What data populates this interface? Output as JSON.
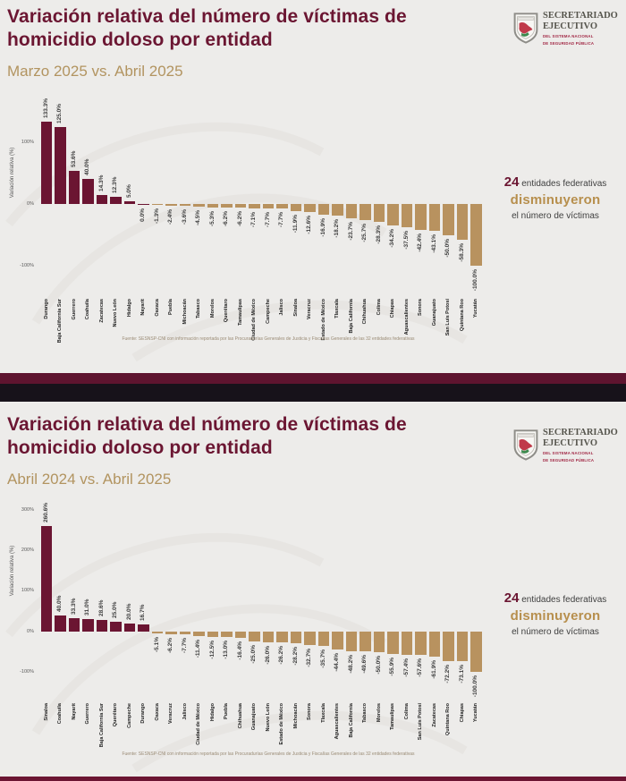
{
  "logo": {
    "org_line1": "SECRETARIADO",
    "org_line2": "EJECUTIVO",
    "sub_line1": "DEL SISTEMA NACIONAL",
    "sub_line2": "DE SEGURIDAD PÚBLICA"
  },
  "colors": {
    "background": "#edecea",
    "title_maroon": "#6b1632",
    "subtitle_tan": "#b29460",
    "bar_positive": "#6b1532",
    "bar_negative": "#b8925f",
    "highlight_gold": "#b78f4d",
    "divider_maroon": "#5e142f",
    "divider_black": "#17121a"
  },
  "chart_data": [
    {
      "type": "bar",
      "title": "Variación relativa del número de víctimas de homicidio doloso por entidad",
      "subtitle": "Marzo 2025 vs. Abril 2025",
      "ylabel": "Variación relativa (%)",
      "ylim": [
        -110,
        145
      ],
      "yticks": [
        100,
        0,
        -100
      ],
      "grid": false,
      "legend": "none",
      "categories": [
        "Durango",
        "Baja California Sur",
        "Guerrero",
        "Coahuila",
        "Zacatecas",
        "Nuevo León",
        "Hidalgo",
        "Nayarit",
        "Oaxaca",
        "Puebla",
        "Michoacán",
        "Tabasco",
        "Morelos",
        "Querétaro",
        "Tamaulipas",
        "Ciudad de México",
        "Campeche",
        "Jalisco",
        "Sinaloa",
        "Veracruz",
        "Estado de México",
        "Tlaxcala",
        "Baja California",
        "Chihuahua",
        "Colima",
        "Chiapas",
        "Aguascalientes",
        "Sonora",
        "Guanajuato",
        "San Luis Potosí",
        "Quintana Roo",
        "Yucatán"
      ],
      "values": [
        133.3,
        125.0,
        53.6,
        40.0,
        14.3,
        12.3,
        5.0,
        0.0,
        -1.3,
        -2.4,
        -3.6,
        -4.5,
        -5.3,
        -6.2,
        -6.2,
        -7.1,
        -7.7,
        -7.7,
        -11.9,
        -12.6,
        -16.9,
        -18.2,
        -23.7,
        -25.7,
        -28.3,
        -34.2,
        -37.5,
        -42.4,
        -43.1,
        -50.0,
        -58.3,
        -100.0
      ],
      "annotation": {
        "count": "24",
        "after_count": " entidades federativas",
        "highlight": "disminuyeron",
        "tail": "el número de víctimas"
      },
      "source": "Fuente: SESNSP-CNI con información reportada por las Procuradurías Generales de Justicia y Fiscalías Generales de las 32 entidades federativas"
    },
    {
      "type": "bar",
      "title": "Variación relativa del número de víctimas de homicidio doloso por entidad",
      "subtitle": "Abril 2024 vs. Abril 2025",
      "ylabel": "Variación relativa (%)",
      "ylim": [
        -110,
        300
      ],
      "yticks": [
        300,
        200,
        100,
        0,
        -100
      ],
      "grid": false,
      "legend": "none",
      "categories": [
        "Sinaloa",
        "Coahuila",
        "Nayarit",
        "Guerrero",
        "Baja California Sur",
        "Querétaro",
        "Campeche",
        "Durango",
        "Oaxaca",
        "Veracruz",
        "Jalisco",
        "Ciudad de México",
        "Hidalgo",
        "Puebla",
        "Chihuahua",
        "Guanajuato",
        "Nuevo León",
        "Estado de México",
        "Michoacán",
        "Sonora",
        "Tlaxcala",
        "Aguascalientes",
        "Baja California",
        "Tabasco",
        "Morelos",
        "Tamaulipas",
        "Colima",
        "San Luis Potosí",
        "Zacatecas",
        "Quintana Roo",
        "Chiapas",
        "Yucatán"
      ],
      "values": [
        260.6,
        40.0,
        33.3,
        31.0,
        28.6,
        25.0,
        20.0,
        16.7,
        -5.1,
        -6.2,
        -7.7,
        -11.4,
        -12.5,
        -13.0,
        -16.4,
        -25.0,
        -26.0,
        -26.2,
        -28.2,
        -32.7,
        -35.7,
        -44.4,
        -48.2,
        -49.6,
        -50.0,
        -55.9,
        -57.4,
        -57.6,
        -61.9,
        -72.2,
        -73.1,
        -100.0
      ],
      "annotation": {
        "count": "24",
        "after_count": " entidades federativas",
        "highlight": "disminuyeron",
        "tail": "el número de víctimas"
      },
      "source": "Fuente: SESNSP-CNI con información reportada por las Procuradurías Generales de Justicia y Fiscalías Generales de las 32 entidades federativas"
    }
  ]
}
